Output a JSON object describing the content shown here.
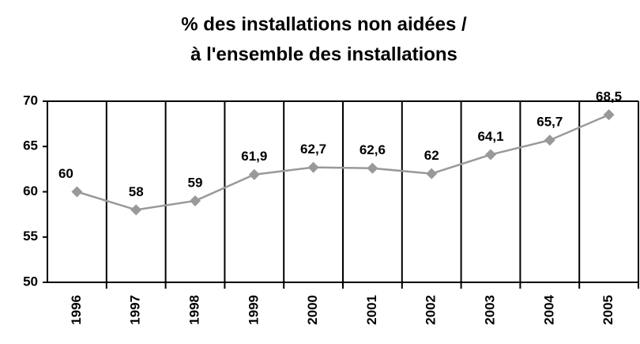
{
  "chart_data": {
    "type": "line",
    "title": [
      "% des installations non aidées /",
      "à l'ensemble des installations"
    ],
    "categories": [
      "1996",
      "1997",
      "1998",
      "1999",
      "2000",
      "2001",
      "2002",
      "2003",
      "2004",
      "2005"
    ],
    "values": [
      60,
      58,
      59,
      61.9,
      62.7,
      62.6,
      62,
      64.1,
      65.7,
      68.5
    ],
    "value_labels": [
      "60",
      "58",
      "59",
      "61,9",
      "62,7",
      "62,6",
      "62",
      "64,1",
      "65,7",
      "68,5"
    ],
    "color": "#999999",
    "ylim": [
      50,
      70
    ],
    "yticks": [
      50,
      55,
      60,
      65,
      70
    ],
    "grid": false
  }
}
